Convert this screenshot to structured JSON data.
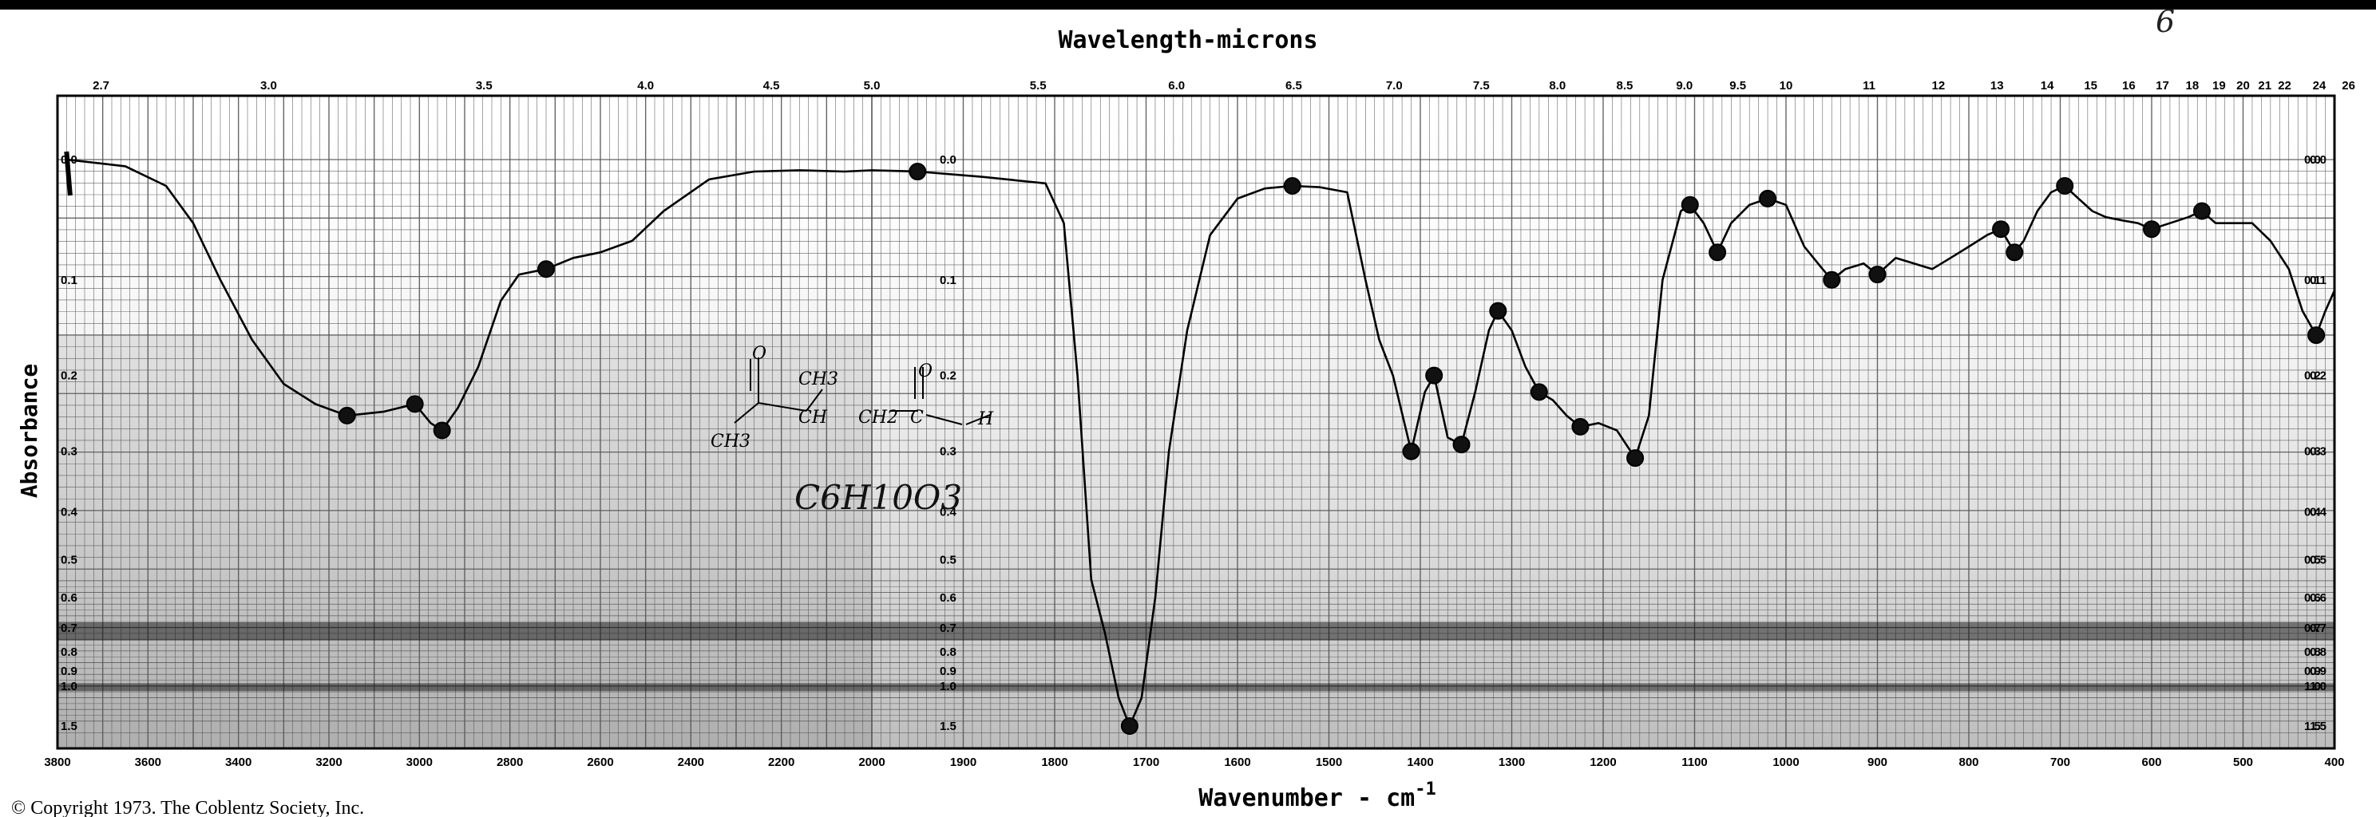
{
  "chart_data": {
    "type": "line",
    "title": "Wavelength-microns",
    "xlabel": "Wavenumber - cm-1",
    "xlabel_main": "Wavenumber - cm",
    "xlabel_sup": "-1",
    "ylabel": "Absorbance",
    "copyright": "© Copyright 1973. The Coblentz Society, Inc.",
    "corner_mark": "6",
    "formula_text": "C6H10O3",
    "structure_labels": [
      "O",
      "CH3",
      "CH",
      "CH2",
      "C",
      "O",
      "H",
      "CH3"
    ],
    "x_axis_bottom": {
      "ticks": [
        3800,
        3600,
        3400,
        3200,
        3000,
        2800,
        2600,
        2400,
        2200,
        2000,
        1900,
        1800,
        1700,
        1600,
        1500,
        1400,
        1300,
        1200,
        1100,
        1000,
        900,
        800,
        700,
        600,
        500,
        400
      ],
      "tick_labels": [
        "3800",
        "3600",
        "3400",
        "3200",
        "3000",
        "2800",
        "2600",
        "2400",
        "2200",
        "2000",
        "1900",
        "1800",
        "1700",
        "1600",
        "1500",
        "1400",
        "1300",
        "1200",
        "1100",
        "1000",
        "900",
        "800",
        "700",
        "600",
        "500",
        "400"
      ]
    },
    "x_axis_top": {
      "ticks": [
        2.7,
        3.0,
        3.5,
        4.0,
        4.5,
        5.0,
        5.5,
        6.0,
        6.5,
        7.0,
        7.5,
        8.0,
        8.5,
        9.0,
        9.5,
        10,
        11,
        12,
        13,
        14,
        15,
        16,
        17,
        18,
        19,
        20,
        21,
        22,
        24,
        26
      ],
      "tick_labels": [
        "2.7",
        "3.0",
        "3.5",
        "4.0",
        "4.5",
        "5.0",
        "5.5",
        "6.0",
        "6.5",
        "7.0",
        "7.5",
        "8.0",
        "8.5",
        "9.0",
        "9.5",
        "10",
        "11",
        "12",
        "13",
        "14",
        "15",
        "16",
        "17",
        "18",
        "19",
        "20",
        "21",
        "22",
        "24",
        "26"
      ]
    },
    "y_axis": {
      "scale": "log-transmittance (absorbance)",
      "ticks": [
        0.0,
        0.1,
        0.2,
        0.3,
        0.4,
        0.5,
        0.6,
        0.7,
        0.8,
        0.9,
        1.0,
        1.5
      ],
      "tick_labels": [
        "0.0",
        "0.1",
        "0.2",
        "0.3",
        "0.4",
        "0.5",
        "0.6",
        "0.7",
        "0.8",
        "0.9",
        "1.0",
        "1.5"
      ]
    },
    "grid": true,
    "series": [
      {
        "color": "#000000",
        "points": [
          [
            3780,
            0.0
          ],
          [
            3650,
            0.005
          ],
          [
            3560,
            0.02
          ],
          [
            3500,
            0.05
          ],
          [
            3440,
            0.1
          ],
          [
            3370,
            0.16
          ],
          [
            3300,
            0.21
          ],
          [
            3230,
            0.235
          ],
          [
            3160,
            0.25
          ],
          [
            3080,
            0.245
          ],
          [
            3010,
            0.235
          ],
          [
            2975,
            0.26
          ],
          [
            2950,
            0.27
          ],
          [
            2915,
            0.24
          ],
          [
            2870,
            0.19
          ],
          [
            2820,
            0.12
          ],
          [
            2780,
            0.095
          ],
          [
            2720,
            0.09
          ],
          [
            2660,
            0.08
          ],
          [
            2600,
            0.075
          ],
          [
            2530,
            0.065
          ],
          [
            2460,
            0.04
          ],
          [
            2360,
            0.015
          ],
          [
            2260,
            0.009
          ],
          [
            2160,
            0.008
          ],
          [
            2060,
            0.009
          ],
          [
            2000,
            0.008
          ],
          [
            1950,
            0.009
          ],
          [
            1880,
            0.013
          ],
          [
            1810,
            0.018
          ],
          [
            1790,
            0.05
          ],
          [
            1775,
            0.2
          ],
          [
            1760,
            0.55
          ],
          [
            1745,
            0.72
          ],
          [
            1730,
            1.1
          ],
          [
            1718,
            1.5
          ],
          [
            1705,
            1.1
          ],
          [
            1690,
            0.6
          ],
          [
            1675,
            0.3
          ],
          [
            1655,
            0.15
          ],
          [
            1630,
            0.06
          ],
          [
            1600,
            0.03
          ],
          [
            1570,
            0.022
          ],
          [
            1540,
            0.02
          ],
          [
            1510,
            0.021
          ],
          [
            1480,
            0.025
          ],
          [
            1460,
            0.1
          ],
          [
            1445,
            0.16
          ],
          [
            1430,
            0.2
          ],
          [
            1410,
            0.3
          ],
          [
            1395,
            0.22
          ],
          [
            1385,
            0.2
          ],
          [
            1370,
            0.28
          ],
          [
            1355,
            0.29
          ],
          [
            1340,
            0.22
          ],
          [
            1325,
            0.15
          ],
          [
            1315,
            0.13
          ],
          [
            1300,
            0.15
          ],
          [
            1285,
            0.19
          ],
          [
            1270,
            0.22
          ],
          [
            1255,
            0.23
          ],
          [
            1240,
            0.25
          ],
          [
            1225,
            0.265
          ],
          [
            1205,
            0.26
          ],
          [
            1185,
            0.27
          ],
          [
            1165,
            0.31
          ],
          [
            1150,
            0.25
          ],
          [
            1135,
            0.1
          ],
          [
            1115,
            0.04
          ],
          [
            1105,
            0.035
          ],
          [
            1090,
            0.05
          ],
          [
            1075,
            0.075
          ],
          [
            1060,
            0.05
          ],
          [
            1040,
            0.035
          ],
          [
            1020,
            0.03
          ],
          [
            1000,
            0.035
          ],
          [
            980,
            0.07
          ],
          [
            960,
            0.09
          ],
          [
            950,
            0.1
          ],
          [
            935,
            0.09
          ],
          [
            915,
            0.085
          ],
          [
            900,
            0.095
          ],
          [
            880,
            0.08
          ],
          [
            860,
            0.085
          ],
          [
            840,
            0.09
          ],
          [
            820,
            0.08
          ],
          [
            800,
            0.07
          ],
          [
            780,
            0.06
          ],
          [
            765,
            0.055
          ],
          [
            750,
            0.075
          ],
          [
            740,
            0.065
          ],
          [
            725,
            0.04
          ],
          [
            710,
            0.025
          ],
          [
            695,
            0.02
          ],
          [
            680,
            0.03
          ],
          [
            665,
            0.04
          ],
          [
            650,
            0.045
          ],
          [
            630,
            0.048
          ],
          [
            615,
            0.05
          ],
          [
            600,
            0.055
          ],
          [
            580,
            0.05
          ],
          [
            560,
            0.045
          ],
          [
            545,
            0.04
          ],
          [
            530,
            0.05
          ],
          [
            510,
            0.05
          ],
          [
            490,
            0.05
          ],
          [
            470,
            0.065
          ],
          [
            450,
            0.09
          ],
          [
            435,
            0.13
          ],
          [
            420,
            0.155
          ],
          [
            410,
            0.13
          ],
          [
            400,
            0.11
          ]
        ]
      }
    ],
    "marked_peaks": [
      [
        3160,
        0.25
      ],
      [
        3010,
        0.235
      ],
      [
        2950,
        0.27
      ],
      [
        2720,
        0.09
      ],
      [
        1950,
        0.009
      ],
      [
        1718,
        1.5
      ],
      [
        1540,
        0.02
      ],
      [
        1410,
        0.3
      ],
      [
        1385,
        0.2
      ],
      [
        1355,
        0.29
      ],
      [
        1315,
        0.13
      ],
      [
        1270,
        0.22
      ],
      [
        1225,
        0.265
      ],
      [
        1165,
        0.31
      ],
      [
        1105,
        0.035
      ],
      [
        1075,
        0.075
      ],
      [
        1020,
        0.03
      ],
      [
        950,
        0.1
      ],
      [
        900,
        0.095
      ],
      [
        765,
        0.055
      ],
      [
        750,
        0.075
      ],
      [
        695,
        0.02
      ],
      [
        600,
        0.055
      ],
      [
        545,
        0.04
      ],
      [
        420,
        0.155
      ]
    ]
  }
}
